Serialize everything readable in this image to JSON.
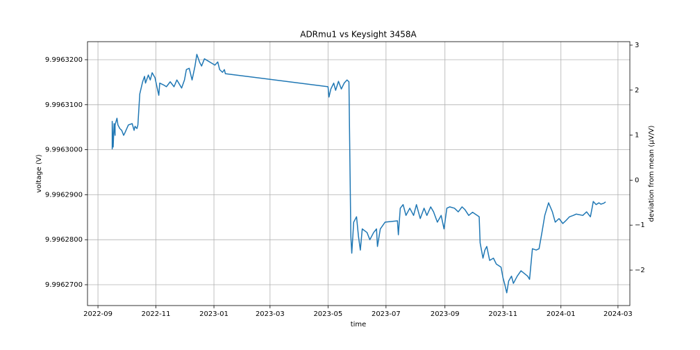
{
  "chart_data": {
    "type": "line",
    "title": "ADRmu1 vs Keysight 3458A",
    "xlabel": "time",
    "ylabel": "voltage (V)",
    "y2label": "deviation from mean (µV/V)",
    "color": "#1f77b4",
    "grid": true,
    "x": [
      19251,
      19251,
      19252,
      19253,
      19254,
      19254,
      19256,
      19257,
      19259,
      19261,
      19263,
      19264,
      19268,
      19272,
      19274,
      19275,
      19277,
      19278,
      19280,
      19283,
      19285,
      19286,
      19289,
      19291,
      19293,
      19296,
      19298,
      19300,
      19301,
      19305,
      19308,
      19312,
      19316,
      19319,
      19321,
      19324,
      19327,
      19329,
      19332,
      19335,
      19338,
      19340,
      19343,
      19345,
      19348,
      19359,
      19362,
      19364,
      19367,
      19369,
      19370,
      19478,
      19479,
      19481,
      19484,
      19486,
      19489,
      19492,
      19495,
      19498,
      19500,
      19502,
      19503,
      19505,
      19508,
      19510,
      19512,
      19514,
      19519,
      19522,
      19526,
      19529,
      19530,
      19533,
      19538,
      19551,
      19552,
      19554,
      19557,
      19560,
      19564,
      19568,
      19571,
      19575,
      19579,
      19582,
      19586,
      19589,
      19593,
      19597,
      19600,
      19603,
      19606,
      19611,
      19615,
      19619,
      19622,
      19626,
      19630,
      19637,
      19638,
      19641,
      19643,
      19645,
      19648,
      19652,
      19655,
      19660,
      19662,
      19664,
      19666,
      19668,
      19671,
      19673,
      19677,
      19681,
      19688,
      19690,
      19693,
      19697,
      19700,
      19703,
      19706,
      19710,
      19714,
      19717,
      19721,
      19725,
      19728,
      19732,
      19736,
      19739,
      19746,
      19750,
      19754,
      19756,
      19757,
      19760,
      19763,
      19765,
      19768,
      19770
    ],
    "values": [
      9.9963001,
      9.9963063,
      9.9963006,
      9.9963058,
      9.9963032,
      9.9963055,
      9.996307,
      9.9963055,
      9.9963047,
      9.9963043,
      9.9963032,
      9.9963036,
      9.9963055,
      9.9963058,
      9.9963043,
      9.9963052,
      9.9963047,
      9.9963055,
      9.9963124,
      9.9963151,
      9.9963163,
      9.9963148,
      9.9963166,
      9.9963155,
      9.9963171,
      9.996316,
      9.996314,
      9.9963121,
      9.9963148,
      9.9963144,
      9.996314,
      9.9963151,
      9.996314,
      9.9963155,
      9.9963148,
      9.9963137,
      9.9963155,
      9.9963178,
      9.9963181,
      9.9963155,
      9.9963185,
      9.9963212,
      9.9963194,
      9.9963186,
      9.9963202,
      9.9963188,
      9.9963195,
      9.9963178,
      9.9963172,
      9.9963178,
      9.9963169,
      9.996314,
      9.9963117,
      9.9963135,
      9.9963148,
      9.9963132,
      9.9963152,
      9.9963135,
      9.9963148,
      9.9963155,
      9.9963151,
      9.9962808,
      9.996277,
      9.9962839,
      9.9962851,
      9.9962808,
      9.9962777,
      9.9962824,
      9.9962816,
      9.99628,
      9.9962816,
      9.9962824,
      9.9962785,
      9.9962824,
      9.9962839,
      9.9962842,
      9.9962811,
      9.996287,
      9.9962878,
      9.9962854,
      9.996287,
      9.9962854,
      9.9962878,
      9.9962847,
      9.996287,
      9.9962854,
      9.9962873,
      9.9962862,
      9.9962839,
      9.9962854,
      9.9962824,
      9.996287,
      9.9962873,
      9.996287,
      9.9962862,
      9.9962873,
      9.9962867,
      9.9962854,
      9.9962861,
      9.9962851,
      9.9962793,
      9.9962759,
      9.9962777,
      9.9962785,
      9.9962754,
      9.9962759,
      9.9962746,
      9.9962739,
      9.9962716,
      9.99627,
      9.9962682,
      9.9962708,
      9.9962719,
      9.9962703,
      9.9962719,
      9.9962731,
      9.9962719,
      9.9962712,
      9.996278,
      9.9962777,
      9.996278,
      9.9962816,
      9.9962854,
      9.9962882,
      9.9962862,
      9.9962839,
      9.9962847,
      9.9962836,
      9.9962842,
      9.9962851,
      9.9962854,
      9.9962857,
      9.9962854,
      9.9962862,
      9.9962851,
      9.9962873,
      9.9962885,
      9.9962878,
      9.9962882,
      9.9962879,
      9.9962881,
      9.9962884
    ],
    "xlim": [
      19225,
      19795.5
    ],
    "xticks": [
      {
        "value": 19236,
        "label": "2022-09"
      },
      {
        "value": 19297,
        "label": "2022-11"
      },
      {
        "value": 19358,
        "label": "2023-01"
      },
      {
        "value": 19417,
        "label": "2023-03"
      },
      {
        "value": 19478,
        "label": "2023-05"
      },
      {
        "value": 19539,
        "label": "2023-07"
      },
      {
        "value": 19601,
        "label": "2023-09"
      },
      {
        "value": 19662,
        "label": "2023-11"
      },
      {
        "value": 19723,
        "label": "2024-01"
      },
      {
        "value": 19783,
        "label": "2024-03"
      }
    ],
    "ylim": [
      9.99626537,
      9.99632401
    ],
    "yticks": [
      {
        "value": 9.99627,
        "label": "9.9962700"
      },
      {
        "value": 9.99628,
        "label": "9.9962800"
      },
      {
        "value": 9.99629,
        "label": "9.9962900"
      },
      {
        "value": 9.9963,
        "label": "9.9963000"
      },
      {
        "value": 9.99631,
        "label": "9.9963100"
      },
      {
        "value": 9.99632,
        "label": "9.9963200"
      }
    ],
    "y2lim": [
      -2.787,
      3.077
    ],
    "y2ticks": [
      {
        "value": -2,
        "label": "−2"
      },
      {
        "value": -1,
        "label": "−1"
      },
      0,
      1,
      2,
      3
    ]
  }
}
